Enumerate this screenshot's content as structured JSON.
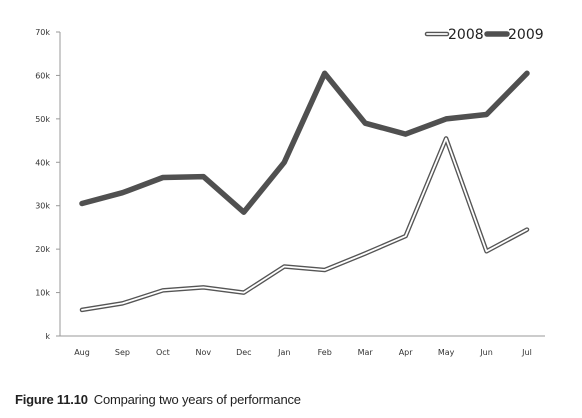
{
  "chart_data": {
    "type": "line",
    "categories": [
      "Aug",
      "Sep",
      "Oct",
      "Nov",
      "Dec",
      "Jan",
      "Feb",
      "Mar",
      "Apr",
      "May",
      "Jun",
      "Jul"
    ],
    "series": [
      {
        "name": "2008",
        "values": [
          6000,
          7500,
          10500,
          11200,
          10000,
          16000,
          15200,
          19000,
          23000,
          45500,
          19500,
          24500
        ],
        "style": "hollow",
        "color": "#555555"
      },
      {
        "name": "2009",
        "values": [
          30500,
          33000,
          36500,
          36700,
          28500,
          40000,
          60500,
          49000,
          46500,
          50000,
          51000,
          60500
        ],
        "style": "solid",
        "color": "#505050"
      }
    ],
    "y_ticks": [
      "k",
      "10k",
      "20k",
      "30k",
      "40k",
      "50k",
      "60k",
      "70k"
    ],
    "ylim": [
      0,
      70000
    ],
    "legend_position": "top-right",
    "grid": false
  },
  "caption": {
    "number": "Figure 11.10",
    "text": "Comparing two years of performance"
  }
}
